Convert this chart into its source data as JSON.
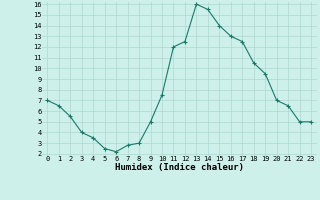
{
  "x": [
    0,
    1,
    2,
    3,
    4,
    5,
    6,
    7,
    8,
    9,
    10,
    11,
    12,
    13,
    14,
    15,
    16,
    17,
    18,
    19,
    20,
    21,
    22,
    23
  ],
  "y": [
    7.0,
    6.5,
    5.5,
    4.0,
    3.5,
    2.5,
    2.2,
    2.8,
    3.0,
    5.0,
    7.5,
    12.0,
    12.5,
    16.0,
    15.5,
    14.0,
    13.0,
    12.5,
    10.5,
    9.5,
    7.0,
    6.5,
    5.0,
    5.0
  ],
  "line_color": "#1a7a6a",
  "marker": "+",
  "bg_color": "#cef0ea",
  "grid_color": "#aed8d2",
  "xlabel": "Humidex (Indice chaleur)",
  "ylim": [
    2,
    16
  ],
  "xlim": [
    -0.5,
    23.5
  ],
  "yticks": [
    2,
    3,
    4,
    5,
    6,
    7,
    8,
    9,
    10,
    11,
    12,
    13,
    14,
    15,
    16
  ],
  "xticks": [
    0,
    1,
    2,
    3,
    4,
    5,
    6,
    7,
    8,
    9,
    10,
    11,
    12,
    13,
    14,
    15,
    16,
    17,
    18,
    19,
    20,
    21,
    22,
    23
  ],
  "tick_fontsize": 5.0,
  "xlabel_fontsize": 6.5
}
